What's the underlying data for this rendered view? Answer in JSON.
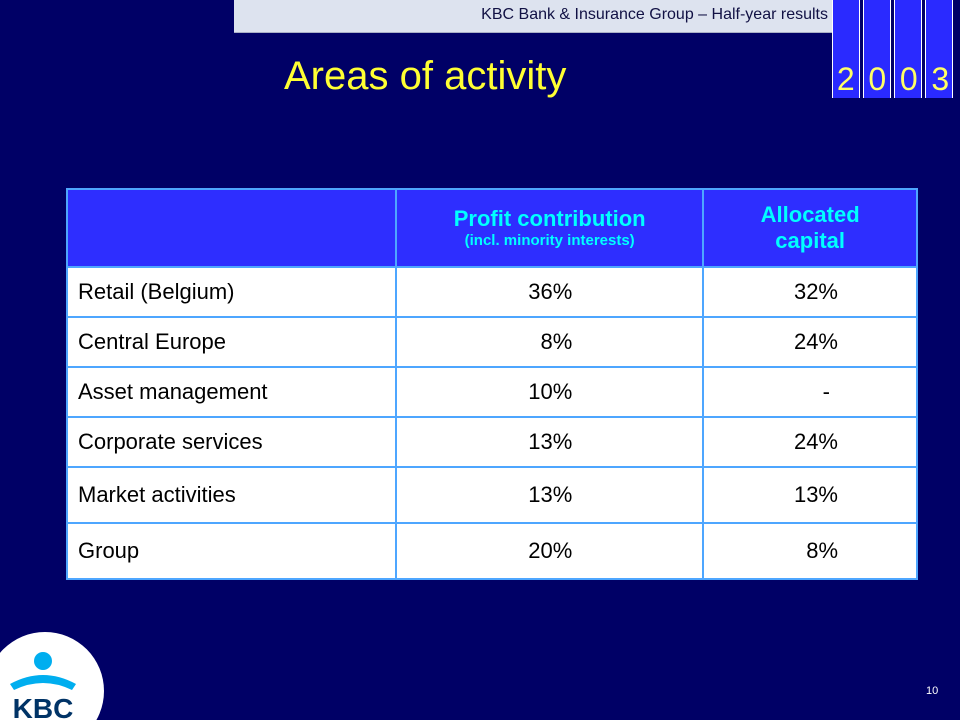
{
  "header": {
    "text": "KBC Bank & Insurance Group – Half-year results"
  },
  "year": {
    "digits": [
      "2",
      "0",
      "0",
      "3"
    ]
  },
  "title": "Areas of activity",
  "table": {
    "headers": {
      "label": "",
      "profit_main": "Profit contribution",
      "profit_sub": "(incl. minority interests)",
      "capital": "Allocated capital"
    },
    "rows": [
      {
        "label": "Retail (Belgium)",
        "profit": "36%",
        "capital": "32%"
      },
      {
        "label": "Central Europe",
        "profit": "8%",
        "capital": "24%"
      },
      {
        "label": "Asset management",
        "profit": "10%",
        "capital": "-"
      },
      {
        "label": "Corporate services",
        "profit": "13%",
        "capital": "24%"
      },
      {
        "label": "Market activities",
        "profit": "13%",
        "capital": "13%"
      },
      {
        "label": "Group",
        "profit": "20%",
        "capital": "8%"
      }
    ]
  },
  "logo": {
    "text": "KBC",
    "icon": "kbc-logo-icon"
  },
  "page_number": "10",
  "colors": {
    "background": "#000066",
    "title": "#ffff33",
    "header_cell": "#2e2eff",
    "header_text": "#00ffff",
    "grid": "#4ea6ff",
    "year_digits": "#ffff66"
  }
}
